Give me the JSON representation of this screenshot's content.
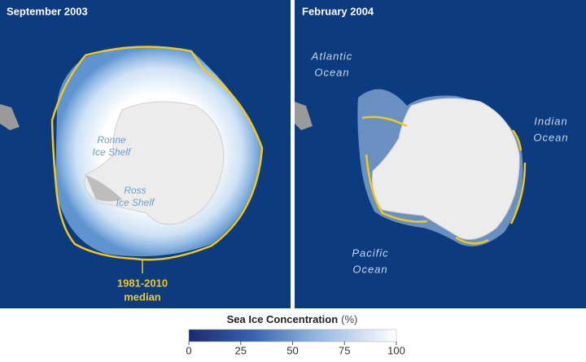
{
  "panels": [
    {
      "title": "September 2003",
      "labels": [
        [
          "Ronne",
          "Ice Shelf"
        ],
        [
          "Ross",
          "Ice Shelf"
        ]
      ],
      "median_label": [
        "1981-2010",
        "median"
      ]
    },
    {
      "title": "February 2004",
      "labels": [
        [
          "Atlantic",
          "Ocean"
        ],
        [
          "Indian",
          "Ocean"
        ],
        [
          "Pacific",
          "Ocean"
        ]
      ]
    }
  ],
  "colorbar": {
    "title": "Sea Ice Concentration",
    "unit": "(%)",
    "lim": [
      0,
      100
    ],
    "ticks": [
      0,
      25,
      50,
      75,
      100
    ]
  }
}
